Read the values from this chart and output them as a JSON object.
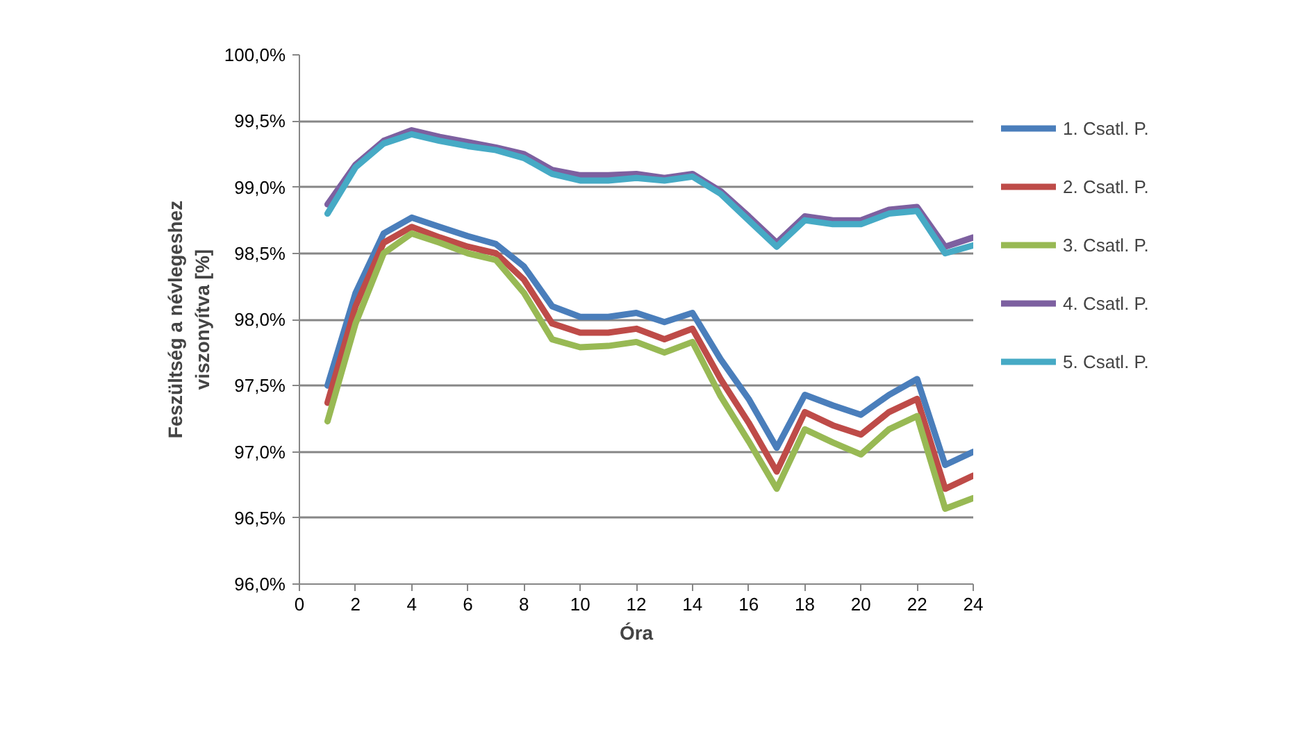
{
  "chart_data": {
    "type": "line",
    "xlabel": "Óra",
    "ylabel": "Feszültség a névlegeshez viszonyítva [%]",
    "x": [
      1,
      2,
      3,
      4,
      5,
      6,
      7,
      8,
      9,
      10,
      11,
      12,
      13,
      14,
      15,
      16,
      17,
      18,
      19,
      20,
      21,
      22,
      23,
      24
    ],
    "series": [
      {
        "name": "1. Csatl. P.",
        "color": "#4a7ebb",
        "values": [
          97.5,
          98.2,
          98.65,
          98.77,
          98.7,
          98.63,
          98.57,
          98.4,
          98.1,
          98.02,
          98.02,
          98.05,
          97.98,
          98.05,
          97.7,
          97.4,
          97.03,
          97.43,
          97.35,
          97.28,
          97.43,
          97.55,
          96.9,
          97.0
        ]
      },
      {
        "name": "2. Csatl. P.",
        "color": "#be4b48",
        "values": [
          97.37,
          98.1,
          98.58,
          98.7,
          98.62,
          98.55,
          98.5,
          98.3,
          97.97,
          97.9,
          97.9,
          97.93,
          97.85,
          97.93,
          97.55,
          97.22,
          96.85,
          97.3,
          97.2,
          97.13,
          97.3,
          97.4,
          96.72,
          96.82
        ]
      },
      {
        "name": "3. Csatl. P.",
        "color": "#98b954",
        "values": [
          97.23,
          97.97,
          98.5,
          98.65,
          98.58,
          98.5,
          98.45,
          98.2,
          97.85,
          97.79,
          97.8,
          97.83,
          97.75,
          97.83,
          97.42,
          97.08,
          96.72,
          97.17,
          97.07,
          96.98,
          97.17,
          97.27,
          96.57,
          96.65
        ]
      },
      {
        "name": "4. Csatl. P.",
        "color": "#7d60a0",
        "values": [
          98.87,
          99.17,
          99.35,
          99.43,
          99.38,
          99.34,
          99.3,
          99.25,
          99.13,
          99.09,
          99.09,
          99.1,
          99.07,
          99.1,
          98.97,
          98.78,
          98.58,
          98.78,
          98.75,
          98.75,
          98.83,
          98.85,
          98.55,
          98.62
        ]
      },
      {
        "name": "5. Csatl. P.",
        "color": "#46aac5",
        "values": [
          98.8,
          99.15,
          99.33,
          99.4,
          99.35,
          99.31,
          99.28,
          99.22,
          99.1,
          99.05,
          99.05,
          99.07,
          99.05,
          99.08,
          98.95,
          98.75,
          98.55,
          98.75,
          98.72,
          98.72,
          98.8,
          98.82,
          98.5,
          98.56
        ]
      }
    ],
    "xlim": [
      0,
      24
    ],
    "xticks": [
      0,
      2,
      4,
      6,
      8,
      10,
      12,
      14,
      16,
      18,
      20,
      22,
      24
    ],
    "ylim": [
      96,
      100
    ],
    "yticks": [
      {
        "value": 96,
        "label": "96,0%"
      },
      {
        "value": 96.5,
        "label": "96,5%"
      },
      {
        "value": 97,
        "label": "97,0%"
      },
      {
        "value": 97.5,
        "label": "97,5%"
      },
      {
        "value": 98,
        "label": "98,0%"
      },
      {
        "value": 98.5,
        "label": "98,5%"
      },
      {
        "value": 99,
        "label": "99,0%"
      },
      {
        "value": 99.5,
        "label": "99,5%"
      },
      {
        "value": 100,
        "label": "100,0%"
      }
    ],
    "grid": "y",
    "legend": "right",
    "marker": "none",
    "line_style": "solid"
  }
}
